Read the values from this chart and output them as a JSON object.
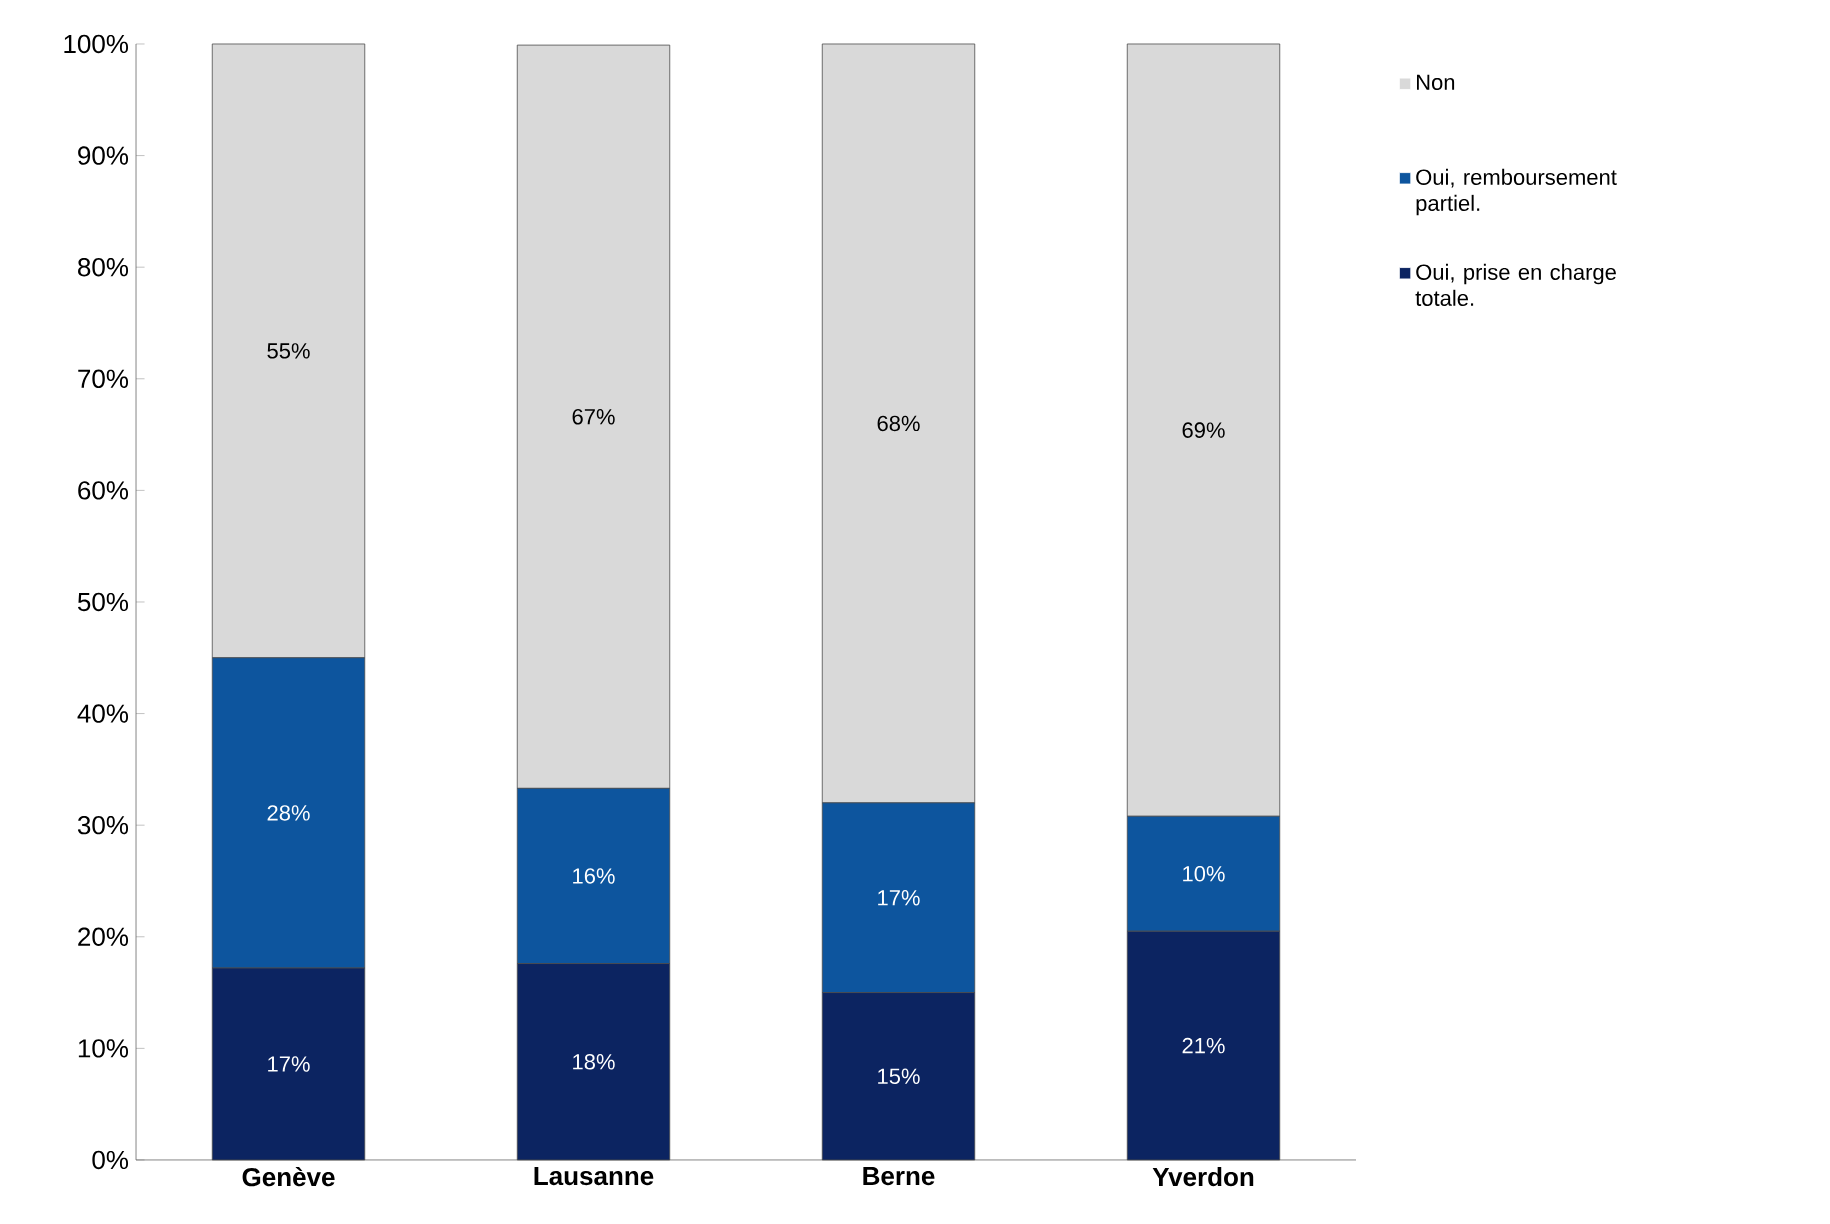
{
  "chart_data": {
    "type": "bar",
    "stacked": true,
    "categories": [
      "Genève",
      "Lausanne",
      "Berne",
      "Yverdon"
    ],
    "series": [
      {
        "name": "Oui, prise en charge totale.",
        "color": "#0c2461",
        "values": [
          17.2,
          17.6,
          15,
          20.5
        ],
        "value_labels": [
          "17%",
          "18%",
          "15%",
          "21%"
        ]
      },
      {
        "name": "Oui, remboursement partiel.",
        "color": "#0d559e",
        "values": [
          27.8,
          15.7,
          17,
          10.3
        ],
        "value_labels": [
          "28%",
          "16%",
          "17%",
          "10%"
        ]
      },
      {
        "name": "Non",
        "color": "#d9d9d9",
        "values": [
          55,
          66.6,
          68,
          69.2
        ],
        "value_labels": [
          "55%",
          "67%",
          "68%",
          "69%"
        ]
      }
    ],
    "ylim": [
      0,
      100
    ],
    "yticks": [
      {
        "value": 0,
        "label": "0%"
      },
      {
        "value": 10,
        "label": "10%"
      },
      {
        "value": 20,
        "label": "20%"
      },
      {
        "value": 30,
        "label": "30%"
      },
      {
        "value": 40,
        "label": "40%"
      },
      {
        "value": 50,
        "label": "50%"
      },
      {
        "value": 60,
        "label": "60%"
      },
      {
        "value": 70,
        "label": "70%"
      },
      {
        "value": 80,
        "label": "80%"
      },
      {
        "value": 90,
        "label": "90%"
      },
      {
        "value": 100,
        "label": "100%"
      }
    ],
    "legend": "right"
  }
}
